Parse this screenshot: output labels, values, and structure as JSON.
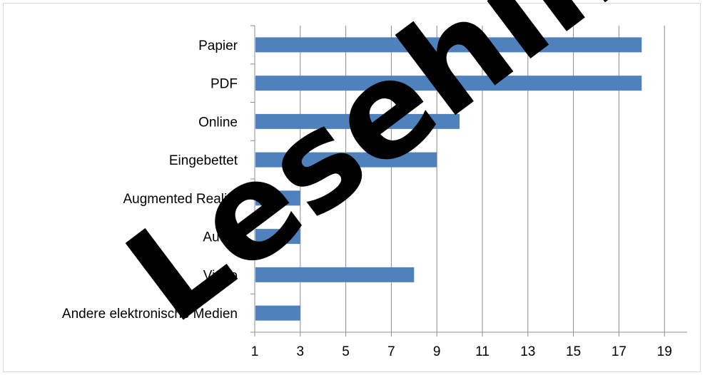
{
  "chart_data": {
    "type": "bar",
    "orientation": "horizontal",
    "categories": [
      "Papier",
      "PDF",
      "Online",
      "Eingebettet",
      "Augmented Reality",
      "Audio",
      "Video",
      "Andere elektronische Medien"
    ],
    "values": [
      18,
      18,
      10,
      9,
      3,
      3,
      8,
      3
    ],
    "title": "",
    "xlabel": "",
    "ylabel": "",
    "xlim": [
      1,
      20
    ],
    "x_ticks": [
      1,
      3,
      5,
      7,
      9,
      11,
      13,
      15,
      17,
      19
    ],
    "grid": "vertical",
    "legend": "none",
    "bar_color": "#4f81bd",
    "grid_color": "#8c8c8c"
  },
  "watermark": {
    "text": "Lesehilfe",
    "color": "#000000"
  }
}
